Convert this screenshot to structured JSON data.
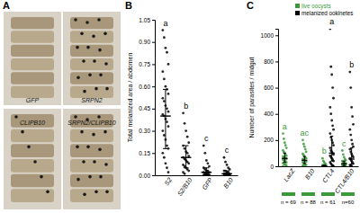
{
  "chart_data": [
    {
      "type": "image",
      "title": "A",
      "labels": [
        "GFP",
        "SRPN2",
        "CLIPB10",
        "SRPN2/CLIPB10"
      ]
    },
    {
      "type": "strip",
      "title": "B",
      "y_label": "Total melanized area / abdomen",
      "categories": [
        "S2",
        "S2/B10",
        "GFP",
        "B10"
      ],
      "color": "#000000",
      "values": [
        [
          0.98,
          0.93,
          0.86,
          0.83,
          0.75,
          0.7,
          0.65,
          0.6,
          0.58,
          0.55,
          0.52,
          0.5,
          0.47,
          0.45,
          0.43,
          0.41,
          0.4,
          0.38,
          0.36,
          0.33,
          0.3,
          0.27,
          0.24,
          0.2,
          0.18,
          0.15,
          0.12,
          0.08,
          0.05,
          0.02
        ],
        [
          0.42,
          0.35,
          0.3,
          0.26,
          0.22,
          0.2,
          0.18,
          0.16,
          0.15,
          0.13,
          0.12,
          0.11,
          0.1,
          0.09,
          0.08,
          0.07,
          0.06,
          0.05,
          0.04,
          0.03,
          0.02,
          0.01
        ],
        [
          0.2,
          0.15,
          0.1,
          0.08,
          0.06,
          0.05,
          0.04,
          0.03,
          0.03,
          0.02,
          0.02,
          0.01,
          0.01,
          0.01,
          0,
          0,
          0,
          0,
          0,
          0
        ],
        [
          0.12,
          0.09,
          0.07,
          0.05,
          0.04,
          0.03,
          0.03,
          0.02,
          0.02,
          0.01,
          0.01,
          0.01,
          0.01,
          0,
          0,
          0,
          0,
          0,
          0,
          0
        ]
      ],
      "median": [
        0.4,
        0.12,
        0.02,
        0.01
      ],
      "q1": [
        0.18,
        0.05,
        0,
        0
      ],
      "q3": [
        0.58,
        0.2,
        0.05,
        0.03
      ],
      "letters": [
        "a",
        "b",
        "c",
        "c"
      ],
      "ylim": [
        0,
        1.05
      ],
      "yticks": [
        {
          "value": 0,
          "label": "0.00"
        },
        {
          "value": 0.15,
          "label": "0.15"
        },
        {
          "value": 0.3,
          "label": "0.30"
        },
        {
          "value": 0.45,
          "label": "0.45"
        },
        {
          "value": 0.6,
          "label": "0.60"
        },
        {
          "value": 0.75,
          "label": "0.75"
        },
        {
          "value": 0.9,
          "label": "0.90"
        },
        {
          "value": 1.05,
          "label": "1.05"
        }
      ]
    },
    {
      "type": "strip",
      "title": "C",
      "y_label": "Number of parasites / midgut",
      "categories": [
        "LacZ",
        "B10",
        "CTL4",
        "CTL4/B10"
      ],
      "n_labels": [
        "n = 69",
        "n = 88",
        "n = 61",
        "n=60"
      ],
      "legend": "upper right",
      "series": [
        {
          "name": "live oocysts",
          "color": "#3a9a3a",
          "values": [
            [
              250,
              210,
              180,
              160,
              140,
              120,
              110,
              100,
              90,
              80,
              75,
              70,
              65,
              60,
              55,
              50,
              45,
              40,
              35,
              30,
              25,
              20,
              15,
              10,
              5,
              0
            ],
            [
              200,
              170,
              150,
              130,
              110,
              95,
              85,
              75,
              65,
              60,
              55,
              50,
              45,
              40,
              35,
              30,
              25,
              20,
              15,
              10,
              5,
              0,
              0
            ],
            [
              60,
              40,
              30,
              20,
              15,
              10,
              8,
              5,
              3,
              2,
              1,
              0,
              0,
              0,
              0,
              0,
              0,
              0
            ],
            [
              120,
              90,
              70,
              55,
              45,
              40,
              35,
              30,
              25,
              20,
              15,
              12,
              10,
              8,
              5,
              3,
              0,
              0,
              0
            ]
          ],
          "median": [
            60,
            45,
            2,
            20
          ],
          "q1": [
            30,
            20,
            0,
            5
          ],
          "q3": [
            100,
            75,
            10,
            40
          ],
          "letters": [
            "a",
            "ac",
            "b",
            "c"
          ]
        },
        {
          "name": "melanized ookinetes",
          "color": "#000000",
          "values": [
            [],
            [],
            [
              1050,
              760,
              700,
              600,
              520,
              450,
              400,
              350,
              310,
              280,
              250,
              220,
              200,
              180,
              160,
              140,
              120,
              110,
              100,
              90,
              80,
              70,
              60,
              50,
              40,
              30,
              20,
              10,
              5,
              0
            ],
            [
              720,
              600,
              450,
              380,
              320,
              280,
              240,
              200,
              170,
              150,
              130,
              110,
              95,
              80,
              70,
              60,
              50,
              40,
              30,
              20,
              10,
              5,
              0
            ]
          ],
          "median": [
            null,
            null,
            100,
            55
          ],
          "q1": [
            null,
            null,
            40,
            15
          ],
          "q3": [
            null,
            null,
            230,
            140
          ],
          "letters": [
            null,
            null,
            "a",
            "b"
          ]
        }
      ],
      "ylim": [
        0,
        1050
      ],
      "yticks": [
        0,
        200,
        400,
        600,
        800,
        1000
      ]
    }
  ]
}
